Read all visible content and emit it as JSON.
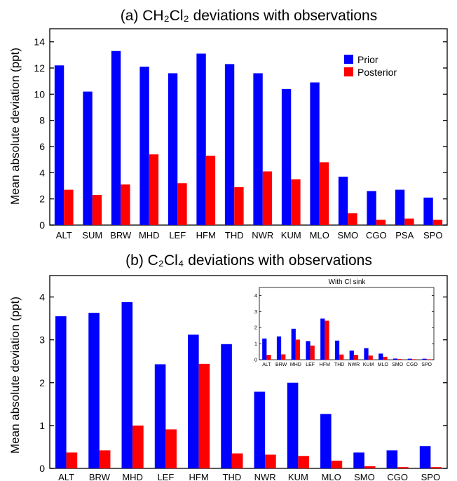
{
  "chart_data": [
    {
      "type": "bar",
      "title": "(a) CH₂Cl₂ deviations with observations",
      "ylabel": "Mean absolute deviation (ppt)",
      "ylim": [
        0,
        15
      ],
      "yticks": [
        0,
        2,
        4,
        6,
        8,
        10,
        12,
        14
      ],
      "legend": "top-right",
      "categories": [
        "ALT",
        "SUM",
        "BRW",
        "MHD",
        "LEF",
        "HFM",
        "THD",
        "NWR",
        "KUM",
        "MLO",
        "SMO",
        "CGO",
        "PSA",
        "SPO"
      ],
      "series": [
        {
          "name": "Prior",
          "color": "#0000ff",
          "values": [
            12.2,
            10.2,
            13.3,
            12.1,
            11.6,
            13.1,
            12.3,
            11.6,
            10.4,
            10.9,
            3.7,
            2.6,
            2.7,
            2.1
          ]
        },
        {
          "name": "Posterior",
          "color": "#ff0000",
          "values": [
            2.7,
            2.3,
            3.1,
            5.4,
            3.2,
            5.3,
            2.9,
            4.1,
            3.5,
            4.8,
            0.9,
            0.4,
            0.5,
            0.4
          ]
        }
      ]
    },
    {
      "type": "bar",
      "title": "(b) C₂Cl₄ deviations with observations",
      "ylabel": "Mean absolute deviation (ppt)",
      "ylim": [
        0,
        4.5
      ],
      "yticks": [
        0,
        1,
        2,
        3,
        4
      ],
      "categories": [
        "ALT",
        "BRW",
        "MHD",
        "LEF",
        "HFM",
        "THD",
        "NWR",
        "KUM",
        "MLO",
        "SMO",
        "CGO",
        "SPO"
      ],
      "series": [
        {
          "name": "Prior",
          "color": "#0000ff",
          "values": [
            3.55,
            3.63,
            3.88,
            2.43,
            3.12,
            2.9,
            1.79,
            2.0,
            1.27,
            0.37,
            0.42,
            0.52
          ]
        },
        {
          "name": "Posterior",
          "color": "#ff0000",
          "values": [
            0.37,
            0.42,
            1.0,
            0.91,
            2.44,
            0.35,
            0.32,
            0.29,
            0.18,
            0.05,
            0.03,
            0.03
          ]
        }
      ]
    },
    {
      "type": "bar",
      "title": "With Cl sink",
      "ylim": [
        0,
        4.5
      ],
      "yticks": [
        0,
        1,
        2,
        3,
        4
      ],
      "categories": [
        "ALT",
        "BRW",
        "MHD",
        "LEF",
        "HFM",
        "THD",
        "NWR",
        "KUM",
        "MLO",
        "SMO",
        "CGO",
        "SPO"
      ],
      "series": [
        {
          "name": "Prior",
          "color": "#0000ff",
          "values": [
            1.32,
            1.45,
            1.93,
            1.16,
            2.56,
            1.19,
            0.57,
            0.72,
            0.38,
            0.07,
            0.06,
            0.06
          ]
        },
        {
          "name": "Posterior",
          "color": "#ff0000",
          "values": [
            0.3,
            0.33,
            1.25,
            0.88,
            2.43,
            0.32,
            0.3,
            0.26,
            0.18,
            0.04,
            0.03,
            0.03
          ]
        }
      ]
    }
  ]
}
